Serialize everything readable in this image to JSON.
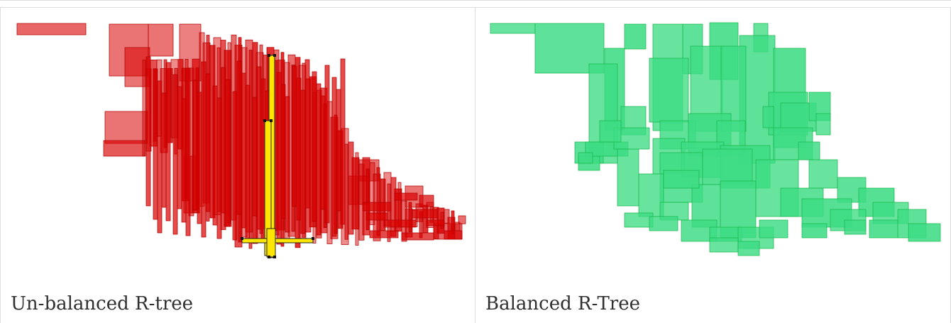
{
  "figures": [
    {
      "caption": "Un-balanced R-tree",
      "fill_color": "#d90000",
      "stroke_color": "#b30000",
      "highlight_color": "#ffe600"
    },
    {
      "caption": "Balanced R-Tree",
      "fill_color": "#3ddc84",
      "stroke_color": "#17b84c"
    }
  ]
}
